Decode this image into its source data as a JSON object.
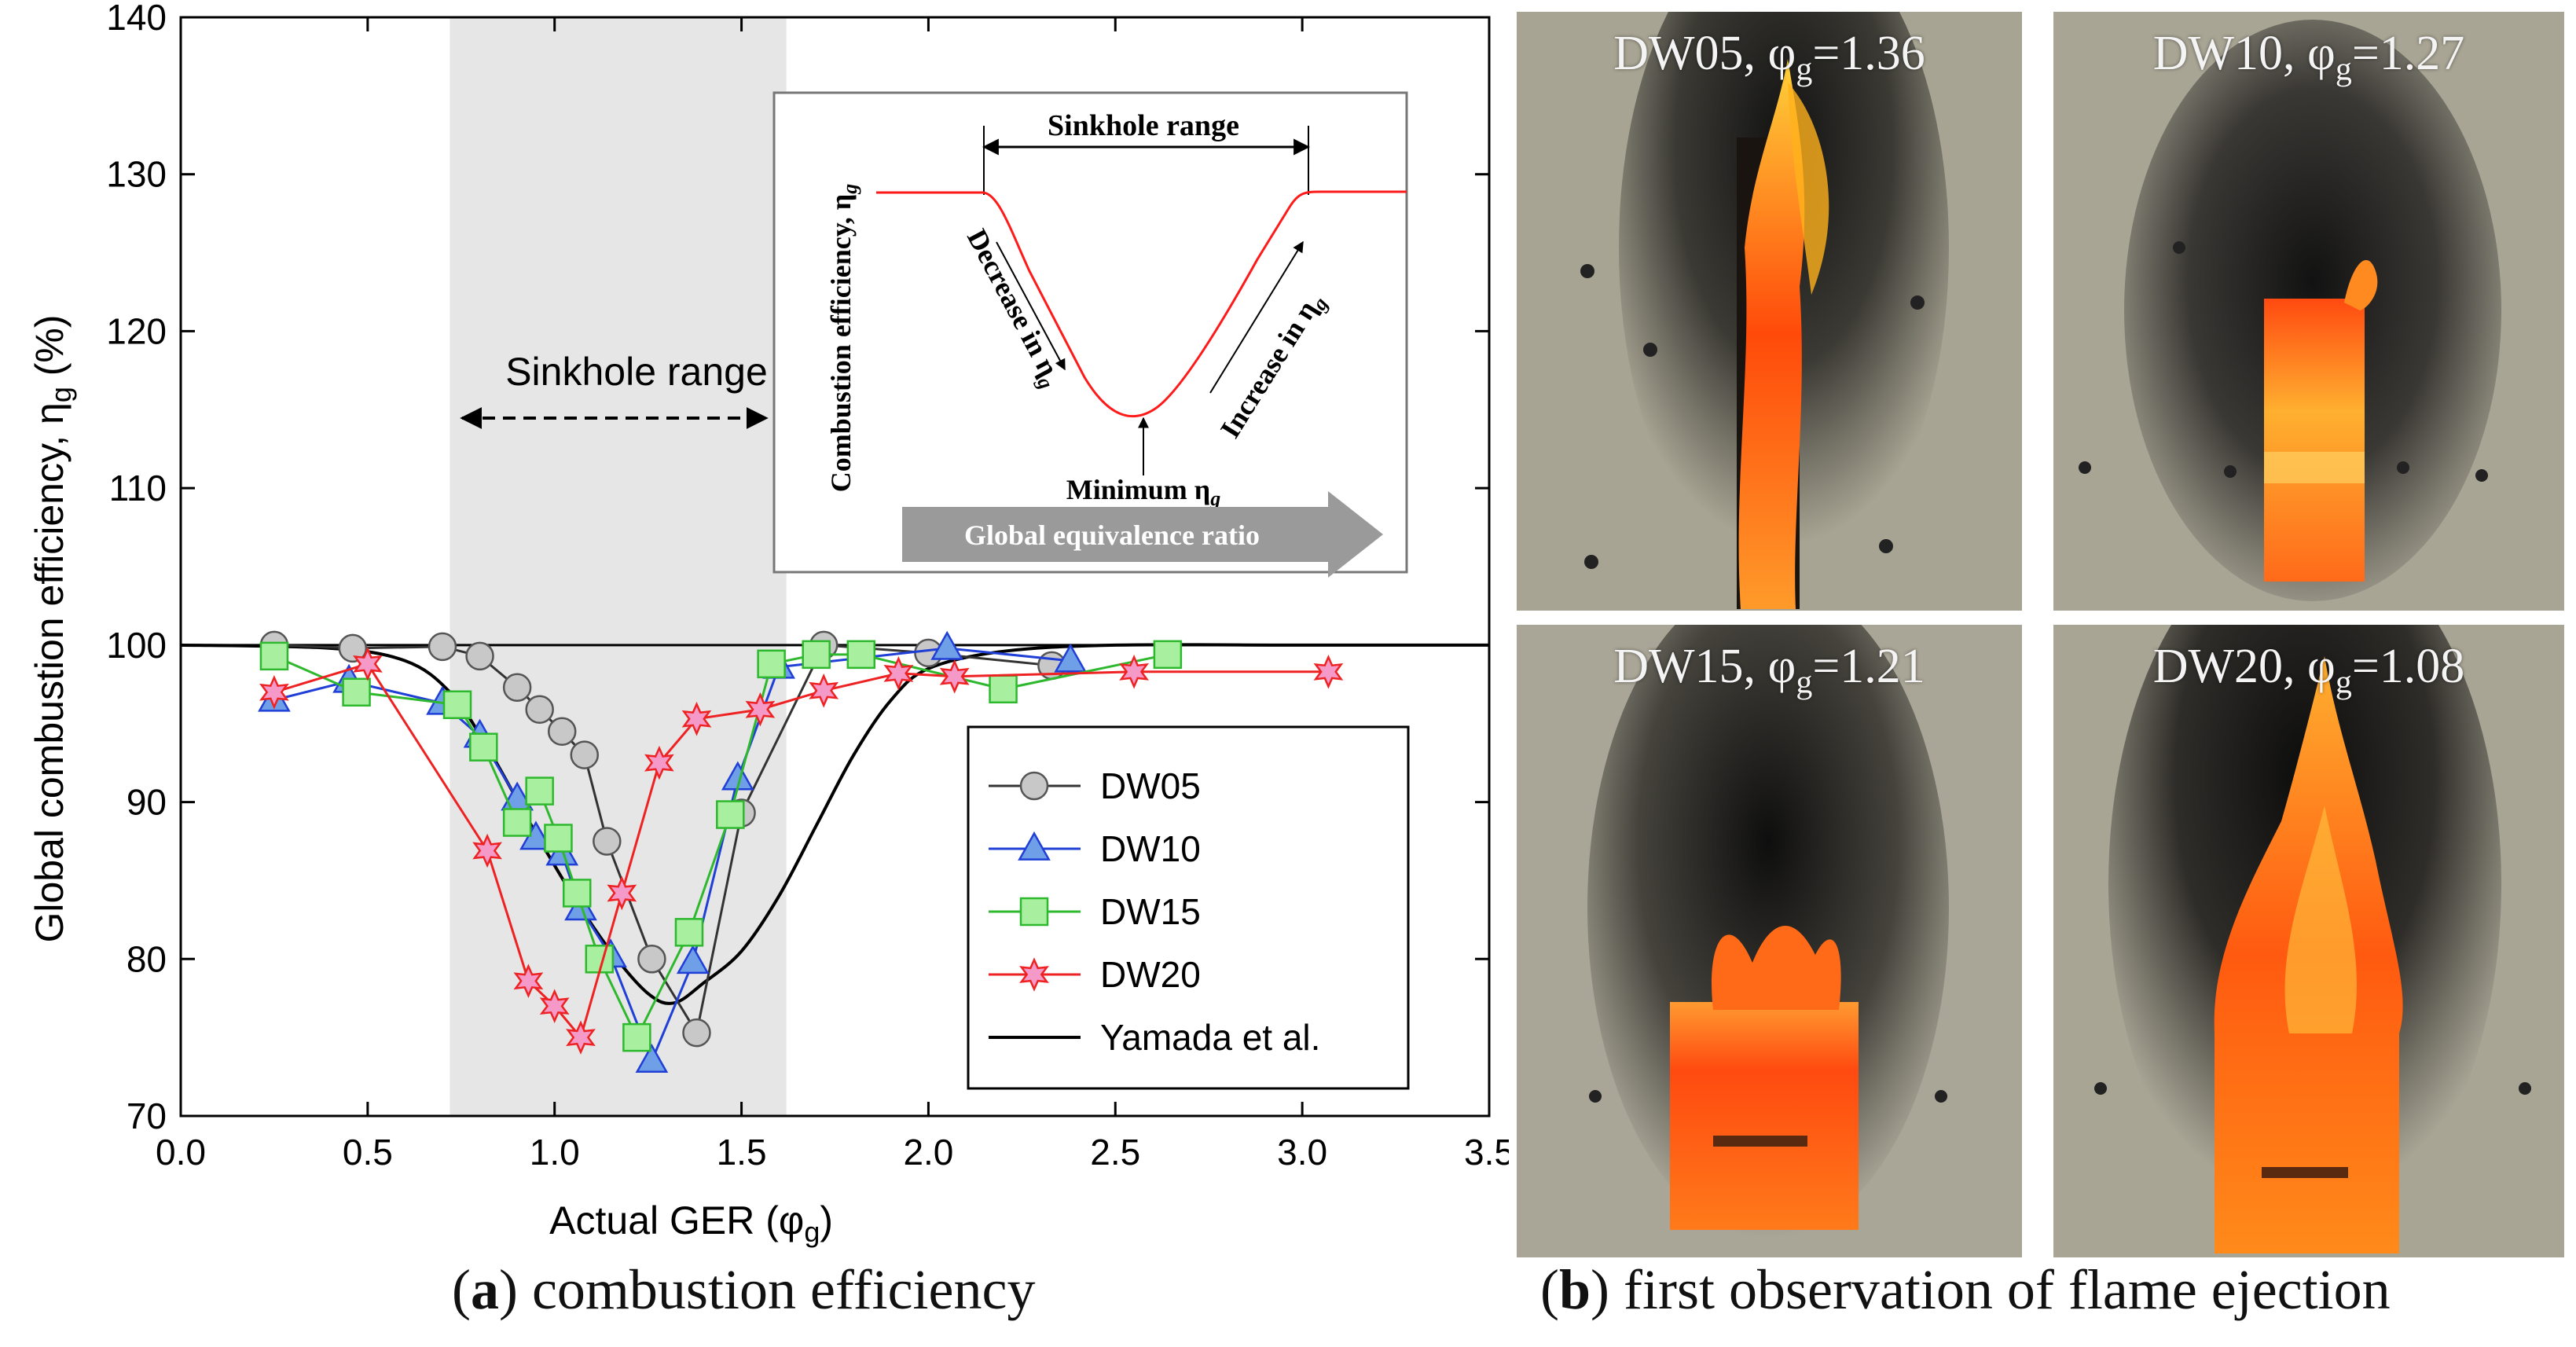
{
  "chart_data": {
    "type": "line",
    "ylabel": "Global combustion efficiency, η",
    "ylabel_sub": "g",
    "ylabel_unit": " (%)",
    "xlabel": "Actual GER (φ",
    "xlabel_sub": "g",
    "xlabel_end": ")",
    "xlim": [
      0,
      3.5
    ],
    "ylim": [
      70,
      140
    ],
    "xticks": [
      "0.0",
      "0.5",
      "1.0",
      "1.5",
      "2.0",
      "2.5",
      "3.0",
      "3.5"
    ],
    "yticks": [
      "70",
      "80",
      "90",
      "100",
      "110",
      "120",
      "130",
      "140"
    ],
    "sinkhole_range": [
      0.72,
      1.62
    ],
    "sinkhole_label": "Sinkhole range",
    "reference_line": 100,
    "series": [
      {
        "name": "DW05",
        "color": "#333333",
        "marker": "circle",
        "fill": "#c8c8c8",
        "x": [
          0.25,
          0.46,
          0.7,
          0.8,
          0.9,
          0.96,
          1.02,
          1.08,
          1.14,
          1.26,
          1.38,
          1.5,
          1.72,
          2.0,
          2.33
        ],
        "y": [
          100,
          99.8,
          99.9,
          99.3,
          97.3,
          95.9,
          94.5,
          93,
          87.5,
          80,
          75.3,
          89.3,
          100,
          99.5,
          98.7
        ]
      },
      {
        "name": "DW10",
        "color": "#1f3fd6",
        "marker": "triangle",
        "fill": "#6f9fe6",
        "x": [
          0.25,
          0.45,
          0.7,
          0.8,
          0.9,
          0.95,
          1.02,
          1.07,
          1.15,
          1.26,
          1.37,
          1.49,
          1.6,
          2.05,
          2.38
        ],
        "y": [
          96.5,
          97.7,
          96.3,
          94.2,
          90.2,
          87.7,
          86.7,
          83.2,
          80.2,
          73.5,
          79.8,
          91.5,
          98.6,
          99.8,
          99
        ]
      },
      {
        "name": "DW15",
        "color": "#2eb82e",
        "marker": "square",
        "fill": "#a8f0a0",
        "x": [
          0.25,
          0.47,
          0.74,
          0.81,
          0.9,
          0.96,
          1.01,
          1.06,
          1.12,
          1.22,
          1.36,
          1.47,
          1.58,
          1.7,
          1.82,
          2.2,
          2.64
        ],
        "y": [
          99.3,
          97,
          96.2,
          93.5,
          88.7,
          90.7,
          87.7,
          84.2,
          80,
          75,
          81.7,
          89.2,
          98.8,
          99.4,
          99.4,
          97.2,
          99.4
        ]
      },
      {
        "name": "DW20",
        "color": "#ee2222",
        "marker": "star",
        "fill": "#f59ac8",
        "x": [
          0.25,
          0.5,
          0.82,
          0.93,
          1.0,
          1.07,
          1.18,
          1.28,
          1.38,
          1.55,
          1.72,
          1.92,
          2.07,
          2.55,
          3.07
        ],
        "y": [
          97,
          98.8,
          86.9,
          78.6,
          77,
          75,
          84.2,
          92.5,
          95.3,
          95.9,
          97.1,
          98.2,
          98,
          98.3,
          98.3
        ]
      },
      {
        "name": "Yamada et al.",
        "color": "#000000",
        "marker": "none",
        "smooth": true,
        "x": [
          0,
          0.4,
          0.6,
          0.72,
          0.82,
          0.95,
          1.05,
          1.15,
          1.25,
          1.32,
          1.4,
          1.5,
          1.6,
          1.7,
          1.8,
          1.9,
          2.0,
          2.2,
          2.5,
          3.0,
          3.5
        ],
        "y": [
          100,
          99.8,
          99,
          97,
          93.5,
          88,
          84,
          80.5,
          77.8,
          77.2,
          78.5,
          80.5,
          84,
          88.5,
          93,
          96.5,
          98.5,
          99.6,
          100,
          100,
          100
        ]
      }
    ]
  },
  "inset": {
    "title": "Sinkhole range",
    "ylabel": "Combustion efficiency, η",
    "ylabel_sub": "g",
    "left_arrow": "Decrease in η",
    "left_arrow_sub": "g",
    "right_arrow": "Increase in η",
    "right_arrow_sub": "g",
    "min_label": "Minimum η",
    "min_label_sub": "g",
    "xaxis_arrow": "Global equivalence ratio"
  },
  "caption_a": {
    "letter": "a",
    "rest": " combustion efficiency"
  },
  "caption_b": {
    "letter": "b",
    "rest": " first observation of flame ejection"
  },
  "photos": [
    {
      "case": "DW05",
      "phi": "1.36"
    },
    {
      "case": "DW10",
      "phi": "1.27"
    },
    {
      "case": "DW15",
      "phi": "1.21"
    },
    {
      "case": "DW20",
      "phi": "1.08"
    }
  ],
  "phi_symbol": "φ",
  "phi_sub": "g",
  "colors": {
    "flame": "#ff5a10",
    "soot": "#151515",
    "wall": "#a8a493",
    "shade": "#e6e6e6"
  }
}
